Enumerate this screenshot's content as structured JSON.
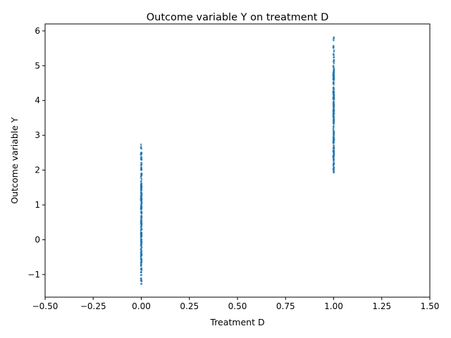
{
  "chart_data": {
    "type": "scatter",
    "title": "Outcome variable Y on  treatment D",
    "xlabel": "Treatment D",
    "ylabel": "Outcome variable Y",
    "xlim": [
      -0.5,
      1.5
    ],
    "ylim": [
      -1.65,
      6.2
    ],
    "x_ticks": [
      -0.5,
      -0.25,
      0.0,
      0.25,
      0.5,
      0.75,
      1.0,
      1.25,
      1.5
    ],
    "x_tick_labels": [
      "−0.50",
      "−0.25",
      "0.00",
      "0.25",
      "0.50",
      "0.75",
      "1.00",
      "1.25",
      "1.50"
    ],
    "y_ticks": [
      -1,
      0,
      1,
      2,
      3,
      4,
      5,
      6
    ],
    "y_tick_labels": [
      "−1",
      "0",
      "1",
      "2",
      "3",
      "4",
      "5",
      "6"
    ],
    "grid": false,
    "marker_color": "#1f77b4",
    "groups": [
      {
        "x": 0,
        "y_min": -1.27,
        "y_max": 2.74,
        "dense_min": -0.7,
        "dense_max": 2.1
      },
      {
        "x": 1,
        "y_min": 1.93,
        "y_max": 5.82,
        "dense_min": 2.35,
        "dense_max": 4.9
      }
    ]
  }
}
